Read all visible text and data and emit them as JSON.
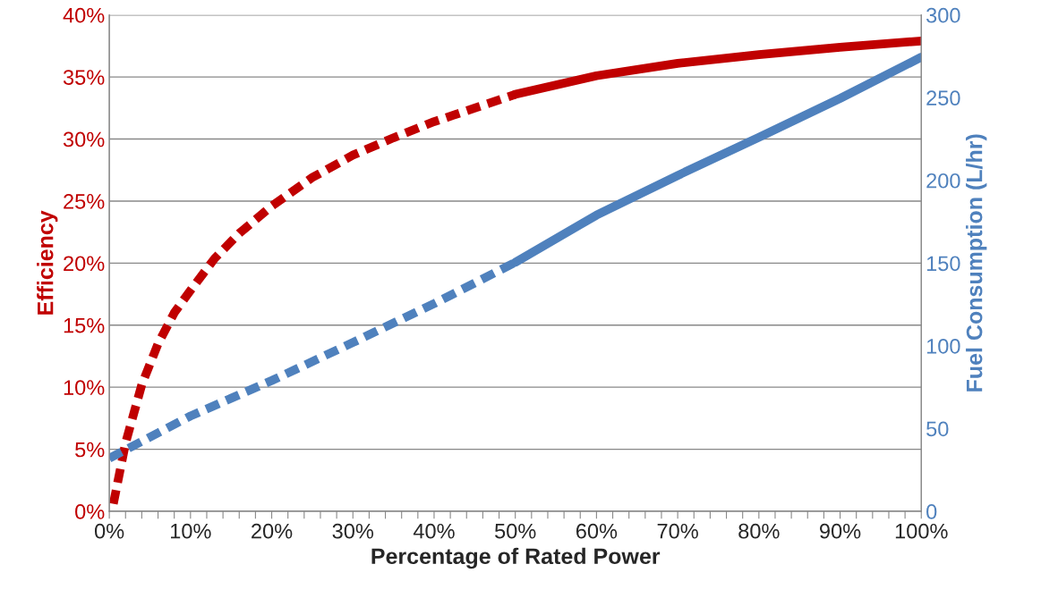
{
  "chart_data": {
    "type": "line",
    "xlabel": "Percentage of Rated Power",
    "ylabel": "Efficiency",
    "y2label": "Fuel Consumption (L/hr)",
    "series": [
      {
        "color": "#c00000",
        "line_style": "dashed",
        "x": [
          0.5,
          2,
          4,
          6,
          8,
          10,
          13,
          16,
          20,
          25,
          30,
          35,
          40,
          45,
          50
        ],
        "values": [
          0.6,
          5.5,
          10.2,
          13.5,
          16,
          17.8,
          20.4,
          22.4,
          24.6,
          26.9,
          28.7,
          30.1,
          31.4,
          32.5,
          33.6
        ]
      },
      {
        "color": "#c00000",
        "line_style": "solid",
        "x": [
          50,
          60,
          70,
          80,
          90,
          100
        ],
        "values": [
          33.6,
          35.1,
          36.1,
          36.8,
          37.4,
          37.9
        ]
      },
      {
        "color": "#4f81bd",
        "line_style": "dashed",
        "axis": "y2",
        "x": [
          0,
          10,
          20,
          30,
          40,
          50
        ],
        "values": [
          32,
          57.6,
          79,
          102,
          125.5,
          150.5
        ]
      },
      {
        "color": "#4f81bd",
        "line_style": "solid",
        "axis": "y2",
        "x": [
          50,
          60,
          70,
          80,
          90,
          100
        ],
        "values": [
          150.5,
          179,
          203,
          226,
          249.5,
          274.5
        ]
      }
    ],
    "xlim": [
      0,
      100
    ],
    "xticks": [
      {
        "value": 0,
        "label": "0%"
      },
      {
        "value": 2,
        "label": null
      },
      {
        "value": 4,
        "label": null
      },
      {
        "value": 6,
        "label": null
      },
      {
        "value": 8,
        "label": null
      },
      {
        "value": 10,
        "label": "10%"
      },
      {
        "value": 12,
        "label": null
      },
      {
        "value": 14,
        "label": null
      },
      {
        "value": 16,
        "label": null
      },
      {
        "value": 18,
        "label": null
      },
      {
        "value": 20,
        "label": "20%"
      },
      {
        "value": 22,
        "label": null
      },
      {
        "value": 24,
        "label": null
      },
      {
        "value": 26,
        "label": null
      },
      {
        "value": 28,
        "label": null
      },
      {
        "value": 30,
        "label": "30%"
      },
      {
        "value": 32,
        "label": null
      },
      {
        "value": 34,
        "label": null
      },
      {
        "value": 36,
        "label": null
      },
      {
        "value": 38,
        "label": null
      },
      {
        "value": 40,
        "label": "40%"
      },
      {
        "value": 42,
        "label": null
      },
      {
        "value": 44,
        "label": null
      },
      {
        "value": 46,
        "label": null
      },
      {
        "value": 48,
        "label": null
      },
      {
        "value": 50,
        "label": "50%"
      },
      {
        "value": 52,
        "label": null
      },
      {
        "value": 54,
        "label": null
      },
      {
        "value": 56,
        "label": null
      },
      {
        "value": 58,
        "label": null
      },
      {
        "value": 60,
        "label": "60%"
      },
      {
        "value": 62,
        "label": null
      },
      {
        "value": 64,
        "label": null
      },
      {
        "value": 66,
        "label": null
      },
      {
        "value": 68,
        "label": null
      },
      {
        "value": 70,
        "label": "70%"
      },
      {
        "value": 72,
        "label": null
      },
      {
        "value": 74,
        "label": null
      },
      {
        "value": 76,
        "label": null
      },
      {
        "value": 78,
        "label": null
      },
      {
        "value": 80,
        "label": "80%"
      },
      {
        "value": 82,
        "label": null
      },
      {
        "value": 84,
        "label": null
      },
      {
        "value": 86,
        "label": null
      },
      {
        "value": 88,
        "label": null
      },
      {
        "value": 90,
        "label": "90%"
      },
      {
        "value": 92,
        "label": null
      },
      {
        "value": 94,
        "label": null
      },
      {
        "value": 96,
        "label": null
      },
      {
        "value": 98,
        "label": null
      },
      {
        "value": 100,
        "label": "100%"
      }
    ],
    "ylim": [
      0,
      40
    ],
    "yticks": [
      {
        "value": 0,
        "label": "0%"
      },
      {
        "value": 5,
        "label": "5%"
      },
      {
        "value": 10,
        "label": "10%"
      },
      {
        "value": 15,
        "label": "15%"
      },
      {
        "value": 20,
        "label": "20%"
      },
      {
        "value": 25,
        "label": "25%"
      },
      {
        "value": 30,
        "label": "30%"
      },
      {
        "value": 35,
        "label": "35%"
      },
      {
        "value": 40,
        "label": "40%"
      }
    ],
    "y2lim": [
      0,
      300
    ],
    "y2ticks": [
      0,
      50,
      100,
      150,
      200,
      250,
      300
    ],
    "grid": "y",
    "legend": false
  }
}
